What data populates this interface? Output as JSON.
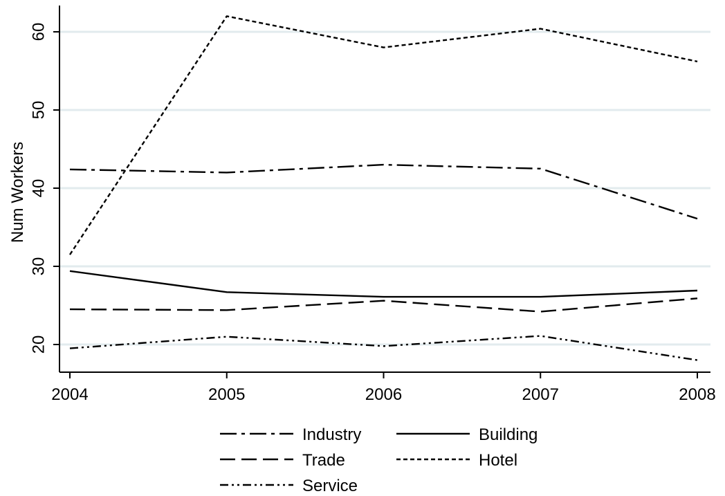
{
  "chart_data": {
    "type": "line",
    "xlabel": "",
    "ylabel": "Num Workers",
    "x": [
      2004,
      2005,
      2006,
      2007,
      2008
    ],
    "xlim": [
      2004,
      2008
    ],
    "ylim": [
      16.9,
      63.4
    ],
    "y_ticks": [
      20,
      30,
      40,
      50,
      60
    ],
    "grid": "horizontal",
    "legend_position": "bottom",
    "series": [
      {
        "name": "Industry",
        "style": "dash-dot",
        "values": [
          42.4,
          42.0,
          43.0,
          42.5,
          36.1
        ]
      },
      {
        "name": "Building",
        "style": "solid",
        "values": [
          29.4,
          26.7,
          26.1,
          26.1,
          26.9
        ]
      },
      {
        "name": "Trade",
        "style": "long-dash",
        "values": [
          24.5,
          24.4,
          25.6,
          24.2,
          25.9
        ]
      },
      {
        "name": "Hotel",
        "style": "short-dash",
        "values": [
          31.5,
          62.0,
          58.0,
          60.4,
          56.2
        ]
      },
      {
        "name": "Service",
        "style": "dash-dot-dot",
        "values": [
          19.5,
          21.0,
          19.8,
          21.1,
          18.0
        ]
      }
    ],
    "colors": {
      "line": "#000000",
      "grid": "#e2ebee",
      "background": "#ffffff"
    }
  }
}
